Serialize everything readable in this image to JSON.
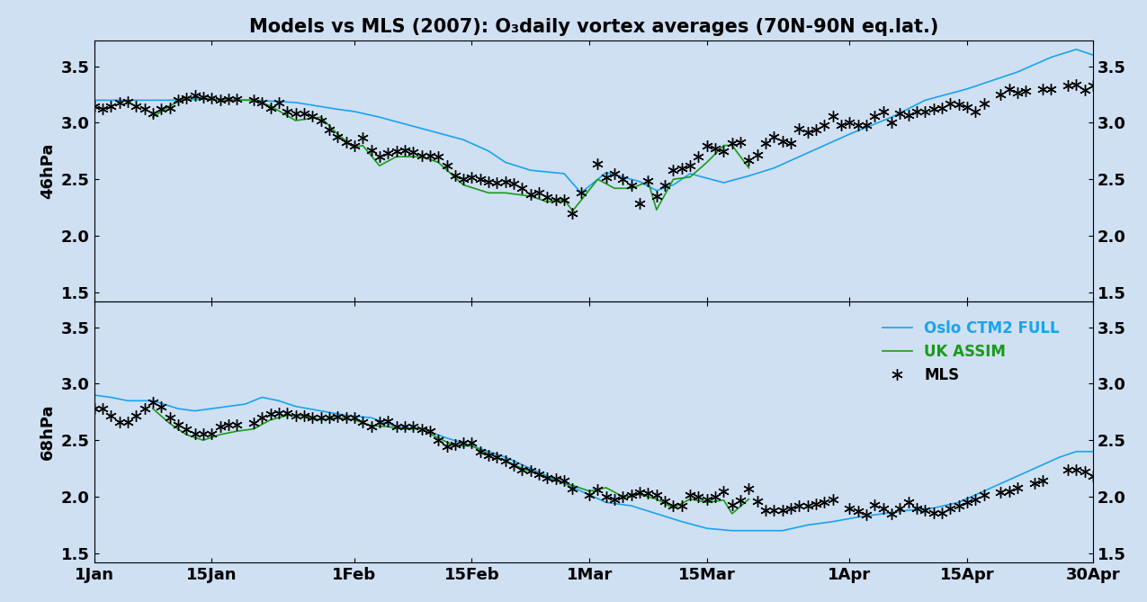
{
  "chart_data": [
    {
      "type": "line",
      "title": "Models vs MLS (2007): O₃daily vortex averages (70N-90N eq.lat.)",
      "ylabel": "46hPa",
      "xlim": [
        1,
        120
      ],
      "xticks": [
        {
          "value": 1,
          "label": "1Jan"
        },
        {
          "value": 15,
          "label": "15Jan"
        },
        {
          "value": 32,
          "label": "1Feb"
        },
        {
          "value": 46,
          "label": "15Feb"
        },
        {
          "value": 60,
          "label": "1Mar"
        },
        {
          "value": 74,
          "label": "15Mar"
        },
        {
          "value": 91,
          "label": "1Apr"
        },
        {
          "value": 105,
          "label": "15Apr"
        },
        {
          "value": 120,
          "label": "30Apr"
        }
      ],
      "ylim": [
        1.42,
        3.73
      ],
      "yticks": [
        1.5,
        2.0,
        2.5,
        3.0,
        3.5
      ],
      "tick_labels": "y",
      "series": [
        {
          "name": "Oslo CTM2 FULL",
          "color": "#1aa3f0",
          "line_style": "solid",
          "marker": "none",
          "x": [
            1,
            5,
            10,
            15,
            20,
            25,
            30,
            32,
            35,
            40,
            45,
            48,
            50,
            53,
            57,
            59,
            62,
            66,
            68,
            70,
            72,
            76,
            79,
            82,
            85,
            88,
            91,
            96,
            100,
            105,
            111,
            115,
            118,
            120
          ],
          "values": [
            3.2,
            3.2,
            3.2,
            3.21,
            3.2,
            3.18,
            3.12,
            3.1,
            3.05,
            2.95,
            2.85,
            2.75,
            2.65,
            2.58,
            2.55,
            2.38,
            2.56,
            2.48,
            2.4,
            2.45,
            2.55,
            2.47,
            2.53,
            2.6,
            2.7,
            2.8,
            2.9,
            3.05,
            3.2,
            3.3,
            3.45,
            3.58,
            3.65,
            3.6
          ]
        },
        {
          "name": "UK ASSIM",
          "color": "#1a9a1a",
          "line_style": "solid",
          "marker": "none",
          "x": [
            8,
            10,
            12,
            14,
            16,
            20,
            22,
            25,
            28,
            30,
            32,
            33,
            35,
            37,
            40,
            42,
            45,
            48,
            50,
            53,
            55,
            57,
            58,
            61,
            63,
            65,
            67,
            68,
            70,
            72,
            74,
            76,
            77,
            78,
            79
          ],
          "values": [
            3.05,
            3.15,
            3.22,
            3.22,
            3.2,
            3.2,
            3.15,
            3.02,
            3.05,
            2.9,
            2.78,
            2.8,
            2.62,
            2.7,
            2.7,
            2.65,
            2.45,
            2.38,
            2.38,
            2.35,
            2.3,
            2.32,
            2.22,
            2.5,
            2.42,
            2.42,
            2.48,
            2.23,
            2.5,
            2.52,
            2.65,
            2.8,
            2.8,
            2.7,
            2.6
          ]
        },
        {
          "name": "MLS",
          "color": "#000000",
          "line_style": "none",
          "marker": "asterisk",
          "x": [
            1,
            2,
            3,
            4,
            5,
            6,
            7,
            8,
            9,
            10,
            11,
            12,
            13,
            14,
            15,
            16,
            17,
            18,
            20,
            21,
            22,
            23,
            24,
            25,
            26,
            27,
            28,
            29,
            30,
            31,
            32,
            33,
            34,
            35,
            36,
            37,
            38,
            39,
            40,
            41,
            42,
            43,
            44,
            45,
            46,
            47,
            48,
            49,
            50,
            51,
            52,
            53,
            54,
            55,
            56,
            57,
            58,
            59,
            61,
            62,
            63,
            64,
            65,
            66,
            67,
            68,
            69,
            70,
            71,
            72,
            73,
            74,
            75,
            76,
            77,
            78,
            79,
            80,
            81,
            82,
            83,
            84,
            85,
            86,
            87,
            88,
            89,
            90,
            91,
            92,
            93,
            94,
            95,
            96,
            97,
            98,
            99,
            100,
            101,
            102,
            103,
            104,
            105,
            106,
            107,
            109,
            110,
            111,
            112,
            114,
            115,
            117,
            118,
            119,
            120
          ],
          "values": [
            3.15,
            3.12,
            3.15,
            3.18,
            3.19,
            3.15,
            3.12,
            3.08,
            3.12,
            3.13,
            3.2,
            3.22,
            3.24,
            3.23,
            3.22,
            3.2,
            3.21,
            3.21,
            3.2,
            3.18,
            3.13,
            3.18,
            3.1,
            3.08,
            3.08,
            3.06,
            3.02,
            2.94,
            2.88,
            2.83,
            2.8,
            2.87,
            2.76,
            2.7,
            2.73,
            2.75,
            2.76,
            2.74,
            2.71,
            2.71,
            2.7,
            2.62,
            2.53,
            2.5,
            2.52,
            2.5,
            2.48,
            2.47,
            2.48,
            2.46,
            2.42,
            2.37,
            2.38,
            2.34,
            2.32,
            2.32,
            2.2,
            2.38,
            2.64,
            2.52,
            2.55,
            2.5,
            2.45,
            2.29,
            2.49,
            2.35,
            2.45,
            2.58,
            2.6,
            2.62,
            2.7,
            2.8,
            2.77,
            2.75,
            2.82,
            2.83,
            2.67,
            2.72,
            2.82,
            2.88,
            2.84,
            2.82,
            2.95,
            2.92,
            2.94,
            2.98,
            3.06,
            2.98,
            3.0,
            2.98,
            2.98,
            3.06,
            3.1,
            3.0,
            3.08,
            3.07,
            3.1,
            3.1,
            3.12,
            3.13,
            3.17,
            3.16,
            3.14,
            3.1,
            3.17,
            3.25,
            3.3,
            3.27,
            3.28,
            3.3,
            3.3,
            3.33,
            3.34,
            3.29,
            3.33
          ]
        }
      ]
    },
    {
      "type": "line",
      "ylabel": "68hPa",
      "xlim": [
        1,
        120
      ],
      "xticks": [
        {
          "value": 1,
          "label": "1Jan"
        },
        {
          "value": 15,
          "label": "15Jan"
        },
        {
          "value": 32,
          "label": "1Feb"
        },
        {
          "value": 46,
          "label": "15Feb"
        },
        {
          "value": 60,
          "label": "1Mar"
        },
        {
          "value": 74,
          "label": "15Mar"
        },
        {
          "value": 91,
          "label": "1Apr"
        },
        {
          "value": 105,
          "label": "15Apr"
        },
        {
          "value": 120,
          "label": "30Apr"
        }
      ],
      "ylim": [
        1.42,
        3.73
      ],
      "yticks": [
        1.5,
        2.0,
        2.5,
        3.0,
        3.5
      ],
      "legend": "upper right",
      "series": [
        {
          "name": "Oslo CTM2 FULL",
          "color": "#1aa3f0",
          "line_style": "solid",
          "marker": "none",
          "x": [
            1,
            3,
            5,
            8,
            11,
            13,
            15,
            17,
            19,
            21,
            23,
            25,
            28,
            31,
            34,
            37,
            40,
            43,
            46,
            50,
            53,
            56,
            59,
            62,
            65,
            68,
            71,
            74,
            77,
            80,
            83,
            86,
            89,
            92,
            95,
            98,
            101,
            104,
            107,
            110,
            113,
            116,
            118,
            120
          ],
          "values": [
            2.9,
            2.88,
            2.85,
            2.85,
            2.78,
            2.76,
            2.78,
            2.8,
            2.82,
            2.88,
            2.85,
            2.8,
            2.76,
            2.72,
            2.7,
            2.62,
            2.6,
            2.52,
            2.45,
            2.35,
            2.25,
            2.15,
            2.05,
            1.95,
            1.92,
            1.85,
            1.78,
            1.72,
            1.7,
            1.7,
            1.7,
            1.75,
            1.78,
            1.82,
            1.85,
            1.88,
            1.9,
            1.95,
            2.05,
            2.15,
            2.25,
            2.35,
            2.4,
            2.4
          ]
        },
        {
          "name": "UK ASSIM",
          "color": "#1a9a1a",
          "line_style": "solid",
          "marker": "none",
          "x": [
            8,
            10,
            12,
            14,
            16,
            18,
            20,
            22,
            24,
            26,
            28,
            30,
            32,
            34,
            36,
            38,
            40,
            42,
            44,
            46,
            48,
            50,
            52,
            54,
            56,
            58,
            60,
            62,
            64,
            66,
            68,
            70,
            72,
            74,
            76,
            77,
            79
          ],
          "values": [
            2.78,
            2.65,
            2.55,
            2.5,
            2.55,
            2.58,
            2.6,
            2.68,
            2.72,
            2.72,
            2.68,
            2.7,
            2.68,
            2.63,
            2.62,
            2.6,
            2.6,
            2.52,
            2.45,
            2.45,
            2.38,
            2.32,
            2.25,
            2.2,
            2.14,
            2.1,
            2.05,
            2.08,
            2.0,
            2.02,
            1.98,
            1.9,
            1.98,
            1.95,
            1.97,
            1.85,
            1.98
          ]
        },
        {
          "name": "MLS",
          "color": "#000000",
          "line_style": "none",
          "marker": "asterisk",
          "x": [
            1,
            2,
            3,
            4,
            5,
            6,
            7,
            8,
            9,
            10,
            11,
            12,
            13,
            14,
            15,
            16,
            17,
            18,
            20,
            21,
            22,
            23,
            24,
            25,
            26,
            27,
            28,
            29,
            30,
            31,
            32,
            33,
            34,
            35,
            36,
            37,
            38,
            39,
            40,
            41,
            42,
            43,
            44,
            45,
            46,
            47,
            48,
            49,
            50,
            51,
            52,
            53,
            54,
            55,
            56,
            57,
            58,
            60,
            61,
            62,
            63,
            64,
            65,
            66,
            67,
            68,
            69,
            70,
            71,
            72,
            73,
            74,
            75,
            76,
            77,
            78,
            79,
            80,
            81,
            82,
            83,
            84,
            85,
            86,
            87,
            88,
            89,
            91,
            92,
            93,
            94,
            95,
            96,
            97,
            98,
            99,
            100,
            101,
            102,
            103,
            104,
            105,
            106,
            107,
            109,
            110,
            111,
            113,
            114,
            117,
            118,
            119,
            120
          ],
          "values": [
            2.78,
            2.78,
            2.72,
            2.66,
            2.66,
            2.72,
            2.78,
            2.84,
            2.8,
            2.7,
            2.64,
            2.6,
            2.56,
            2.56,
            2.56,
            2.62,
            2.64,
            2.64,
            2.65,
            2.7,
            2.73,
            2.74,
            2.74,
            2.72,
            2.72,
            2.7,
            2.7,
            2.7,
            2.71,
            2.7,
            2.7,
            2.66,
            2.62,
            2.66,
            2.67,
            2.62,
            2.62,
            2.62,
            2.6,
            2.58,
            2.5,
            2.45,
            2.46,
            2.48,
            2.48,
            2.4,
            2.37,
            2.35,
            2.32,
            2.28,
            2.24,
            2.23,
            2.2,
            2.17,
            2.16,
            2.14,
            2.07,
            2.02,
            2.06,
            2.0,
            1.98,
            2.0,
            2.02,
            2.04,
            2.03,
            2.02,
            1.96,
            1.92,
            1.92,
            2.02,
            2.0,
            1.98,
            2.0,
            2.05,
            1.93,
            1.97,
            2.07,
            1.96,
            1.88,
            1.88,
            1.88,
            1.9,
            1.92,
            1.92,
            1.94,
            1.95,
            1.98,
            1.9,
            1.87,
            1.84,
            1.93,
            1.9,
            1.85,
            1.9,
            1.95,
            1.9,
            1.88,
            1.86,
            1.86,
            1.9,
            1.92,
            1.95,
            1.98,
            2.02,
            2.04,
            2.05,
            2.08,
            2.12,
            2.14,
            2.24,
            2.24,
            2.22,
            2.18
          ]
        }
      ]
    }
  ]
}
